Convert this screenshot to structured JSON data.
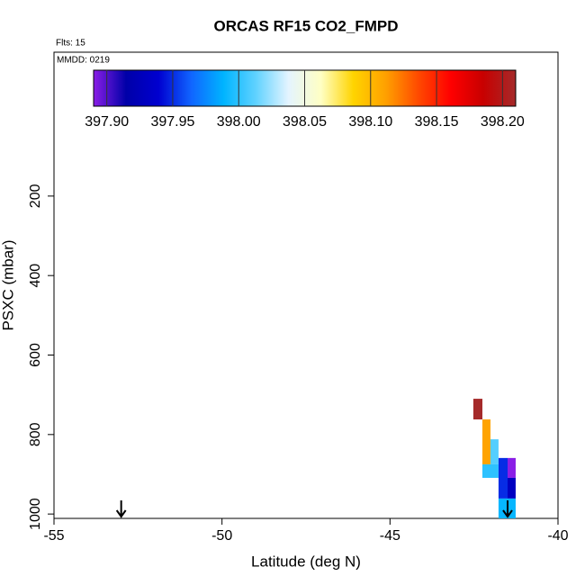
{
  "chart_data": {
    "type": "cells",
    "title": "ORCAS RF15 CO2_FMPD",
    "annotations": [
      "Flts: 15",
      "MMDD: 0219"
    ],
    "x_label": "Latitude (deg N)",
    "y_label": "PSXC (mbar)",
    "xlim": [
      -55,
      -40
    ],
    "xticks": [
      -55,
      -50,
      -45,
      -40
    ],
    "ylim": [
      1011,
      -162
    ],
    "yticks": [
      200,
      400,
      600,
      800,
      1000
    ],
    "colorbar": {
      "lim": [
        397.89,
        398.21
      ],
      "colors": [
        "#8a1ee6",
        "#0000a8",
        "#0000d0",
        "#1064ff",
        "#00b4ff",
        "#60d2ff",
        "#e4f4ff",
        "#ffffc4",
        "#ffd400",
        "#ffa000",
        "#ff4a00",
        "#ff0000",
        "#c80000",
        "#a52a2a"
      ],
      "ticks": [
        {
          "value": 397.9,
          "label": "397.90"
        },
        {
          "value": 397.95,
          "label": "397.95"
        },
        {
          "value": 398.0,
          "label": "398.00"
        },
        {
          "value": 398.05,
          "label": "398.05"
        },
        {
          "value": 398.1,
          "label": "398.10"
        },
        {
          "value": 398.15,
          "label": "398.15"
        },
        {
          "value": 398.2,
          "label": "398.20"
        }
      ]
    },
    "cells": [
      {
        "lat": [
          -42.52,
          -42.25
        ],
        "p": [
          710,
          762
        ],
        "value": 398.21
      },
      {
        "lat": [
          -42.25,
          -42.01
        ],
        "p": [
          762,
          875
        ],
        "value": 398.11
      },
      {
        "lat": [
          -42.01,
          -41.77
        ],
        "p": [
          812,
          875
        ],
        "value": 398.01
      },
      {
        "lat": [
          -42.25,
          -41.77
        ],
        "p": [
          875,
          909
        ],
        "value": 398.0
      },
      {
        "lat": [
          -41.77,
          -41.5
        ],
        "p": [
          859,
          961
        ],
        "value": 397.95
      },
      {
        "lat": [
          -41.5,
          -41.26
        ],
        "p": [
          859,
          909
        ],
        "value": 397.89
      },
      {
        "lat": [
          -41.5,
          -41.26
        ],
        "p": [
          909,
          961
        ],
        "value": 397.93
      },
      {
        "lat": [
          -41.77,
          -41.26
        ],
        "p": [
          961,
          1011
        ],
        "value": 397.99
      }
    ],
    "arrows": [
      -53,
      -41.5
    ]
  }
}
